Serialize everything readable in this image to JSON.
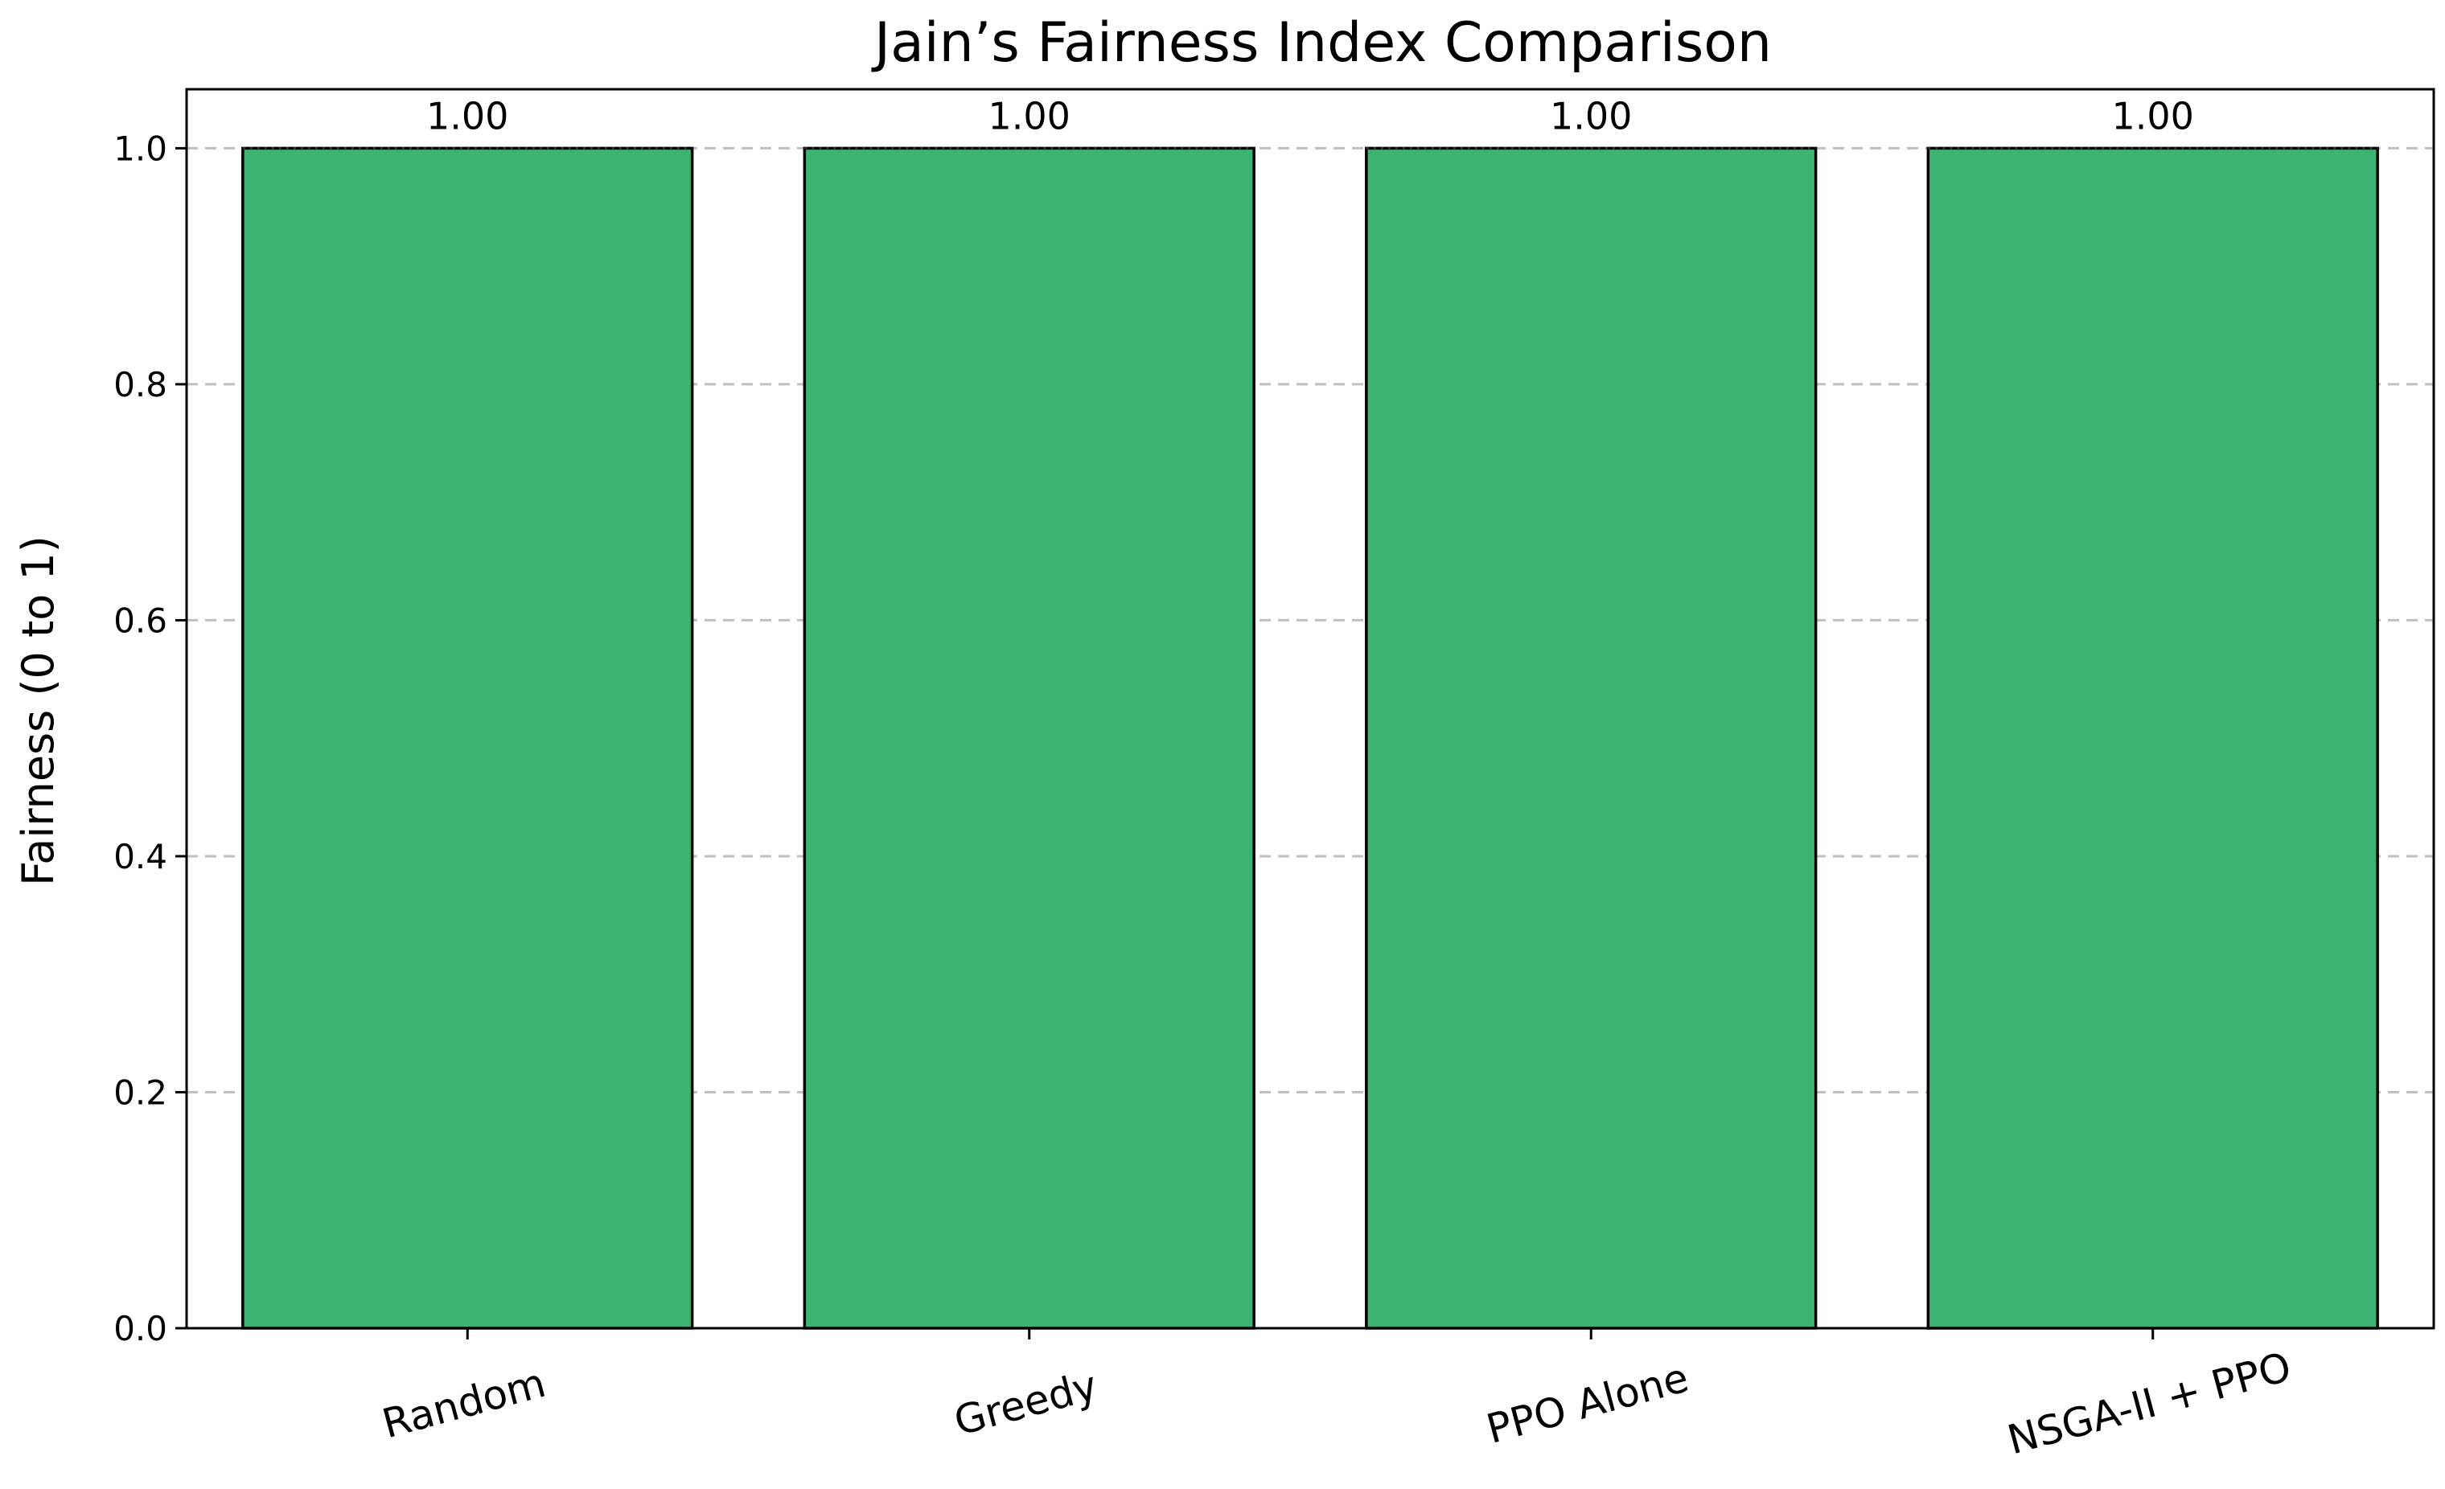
{
  "chart_data": {
    "type": "bar",
    "title": "Jain’s Fairness Index Comparison",
    "xlabel": "",
    "ylabel": "Fairness (0 to 1)",
    "categories": [
      "Random",
      "Greedy",
      "PPO Alone",
      "NSGA-II + PPO"
    ],
    "values": [
      1.0,
      1.0,
      1.0,
      1.0
    ],
    "data_labels": [
      "1.00",
      "1.00",
      "1.00",
      "1.00"
    ],
    "ylim": [
      0,
      1.05
    ],
    "yticks": [
      0.0,
      0.2,
      0.4,
      0.6,
      0.8,
      1.0
    ],
    "ytick_labels": [
      "0.0",
      "0.2",
      "0.4",
      "0.6",
      "0.8",
      "1.0"
    ],
    "grid": "y-dashed",
    "legend": "none",
    "xtick_rotation": -15,
    "colors": {
      "bar_fill": "#3cb371",
      "bar_edge": "#000000",
      "grid": "#c0c0c0"
    }
  }
}
